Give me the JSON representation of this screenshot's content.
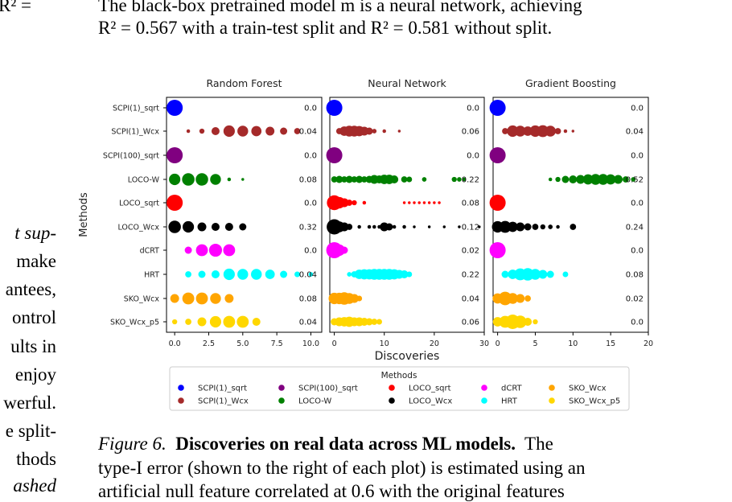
{
  "body_text": {
    "top_line1": "The black-box pretrained model m is a neural network, achieving",
    "top_line2": "R² = 0.567 with a train-test split and R² = 0.581 without split.",
    "left_fragment_eq": "R² =",
    "left_col_lines": [
      "t sup-",
      "make",
      "antees,",
      "ontrol",
      "ults in",
      "enjoy",
      "werful.",
      "e split-",
      "thods",
      "ashed"
    ]
  },
  "caption": {
    "label": "Figure 6.",
    "title": "Discoveries on real data across ML models.",
    "line1_rest": "The",
    "line2": "type-I error (shown to the right of each plot) is estimated using an",
    "line3": "artificial null feature correlated at 0.6 with the original features"
  },
  "chart_data": {
    "type": "scatter",
    "subtype": "dot-strip with marker size proportional to frequency",
    "ylabel": "Methods",
    "xlabel": "Discoveries",
    "methods": [
      "SCPI(1)_sqrt",
      "SCPI(1)_Wcx",
      "SCPI(100)_sqrt",
      "LOCO-W",
      "LOCO_sqrt",
      "LOCO_Wcx",
      "dCRT",
      "HRT",
      "SKO_Wcx",
      "SKO_Wcx_p5"
    ],
    "colors": {
      "SCPI(1)_sqrt": "#0000ff",
      "SCPI(1)_Wcx": "#a52a2a",
      "SCPI(100)_sqrt": "#800080",
      "LOCO-W": "#008000",
      "LOCO_sqrt": "#ff0000",
      "LOCO_Wcx": "#000000",
      "dCRT": "#ff00ff",
      "HRT": "#00ffff",
      "SKO_Wcx": "#ffa500",
      "SKO_Wcx_p5": "#ffd700"
    },
    "panels": [
      {
        "title": "Random Forest",
        "xlim": [
          -0.6,
          10.8
        ],
        "xticks": [
          0.0,
          2.5,
          5.0,
          7.5,
          10.0
        ],
        "xtick_labels": [
          "0.0",
          "2.5",
          "5.0",
          "7.5",
          "10.0"
        ],
        "type1_error": [
          "0.0",
          "0.04",
          "0.0",
          "0.08",
          "0.0",
          "0.32",
          "0.0",
          "0.04",
          "0.08",
          "0.04"
        ],
        "points": [
          [
            [
              0,
              1.0
            ]
          ],
          [
            [
              1,
              0.05
            ],
            [
              2,
              0.1
            ],
            [
              3,
              0.25
            ],
            [
              4,
              0.5
            ],
            [
              5,
              0.45
            ],
            [
              6,
              0.4
            ],
            [
              7,
              0.3
            ],
            [
              8,
              0.2
            ],
            [
              9,
              0.15
            ]
          ],
          [
            [
              0,
              1.0
            ]
          ],
          [
            [
              0,
              0.5
            ],
            [
              1,
              0.6
            ],
            [
              2,
              0.6
            ],
            [
              3,
              0.45
            ],
            [
              4,
              0.05
            ],
            [
              5,
              0.03
            ]
          ],
          [
            [
              0,
              1.0
            ]
          ],
          [
            [
              0,
              0.6
            ],
            [
              1,
              0.5
            ],
            [
              2,
              0.3
            ],
            [
              3,
              0.25
            ],
            [
              4,
              0.25
            ],
            [
              5,
              0.2
            ]
          ],
          [
            [
              1,
              0.2
            ],
            [
              2,
              0.55
            ],
            [
              3,
              0.65
            ],
            [
              4,
              0.55
            ]
          ],
          [
            [
              1,
              0.15
            ],
            [
              2,
              0.2
            ],
            [
              3,
              0.25
            ],
            [
              4,
              0.5
            ],
            [
              5,
              0.45
            ],
            [
              6,
              0.45
            ],
            [
              7,
              0.35
            ],
            [
              8,
              0.2
            ],
            [
              9,
              0.12
            ],
            [
              10,
              0.08
            ]
          ],
          [
            [
              0,
              0.3
            ],
            [
              1,
              0.55
            ],
            [
              2,
              0.55
            ],
            [
              3,
              0.45
            ],
            [
              4,
              0.3
            ]
          ],
          [
            [
              0,
              0.1
            ],
            [
              1,
              0.15
            ],
            [
              2,
              0.3
            ],
            [
              3,
              0.5
            ],
            [
              4,
              0.55
            ],
            [
              5,
              0.55
            ],
            [
              6,
              0.25
            ]
          ]
        ]
      },
      {
        "title": "Neural Network",
        "xlim": [
          -0.9,
          30.0
        ],
        "xticks": [
          0,
          10,
          20,
          30
        ],
        "xtick_labels": [
          "0",
          "10",
          "20",
          "30"
        ],
        "type1_error": [
          "0.0",
          "0.06",
          "0.0",
          "0.22",
          "0.08",
          "0.12",
          "0.02",
          "0.22",
          "0.04",
          "0.06"
        ],
        "points": [
          [
            [
              0,
              1.0
            ]
          ],
          [
            [
              1,
              0.15
            ],
            [
              2,
              0.35
            ],
            [
              3,
              0.45
            ],
            [
              4,
              0.45
            ],
            [
              5,
              0.4
            ],
            [
              6,
              0.3
            ],
            [
              7,
              0.2
            ],
            [
              8,
              0.08
            ],
            [
              10,
              0.05
            ],
            [
              13,
              0.03
            ]
          ],
          [
            [
              0,
              1.0
            ]
          ],
          [
            [
              0,
              0.15
            ],
            [
              1,
              0.2
            ],
            [
              2,
              0.15
            ],
            [
              3,
              0.2
            ],
            [
              4,
              0.15
            ],
            [
              5,
              0.2
            ],
            [
              6,
              0.15
            ],
            [
              7,
              0.2
            ],
            [
              8,
              0.3
            ],
            [
              9,
              0.25
            ],
            [
              10,
              0.35
            ],
            [
              11,
              0.35
            ],
            [
              12,
              0.25
            ],
            [
              14,
              0.15
            ],
            [
              15,
              0.12
            ],
            [
              18,
              0.08
            ],
            [
              24,
              0.1
            ],
            [
              25,
              0.08
            ],
            [
              26,
              0.05
            ]
          ],
          [
            [
              0,
              0.85
            ],
            [
              1,
              0.5
            ],
            [
              2,
              0.3
            ],
            [
              3,
              0.15
            ],
            [
              4,
              0.1
            ],
            [
              6,
              0.05
            ],
            [
              14,
              0.03
            ],
            [
              15,
              0.03
            ],
            [
              16,
              0.03
            ],
            [
              17,
              0.03
            ],
            [
              18,
              0.03
            ],
            [
              19,
              0.03
            ],
            [
              20,
              0.03
            ],
            [
              21,
              0.03
            ]
          ],
          [
            [
              0,
              0.9
            ],
            [
              1,
              0.45
            ],
            [
              2,
              0.3
            ],
            [
              3,
              0.15
            ],
            [
              5,
              0.05
            ],
            [
              7,
              0.05
            ],
            [
              8,
              0.05
            ],
            [
              9,
              0.05
            ],
            [
              10,
              0.3
            ],
            [
              11,
              0.2
            ],
            [
              12,
              0.05
            ],
            [
              14,
              0.05
            ],
            [
              16,
              0.03
            ],
            [
              19,
              0.03
            ],
            [
              22,
              0.03
            ],
            [
              25,
              0.03
            ],
            [
              29,
              0.03
            ]
          ],
          [
            [
              0,
              1.0
            ],
            [
              1,
              0.5
            ],
            [
              2,
              0.2
            ]
          ],
          [
            [
              3,
              0.08
            ],
            [
              4,
              0.15
            ],
            [
              5,
              0.35
            ],
            [
              6,
              0.4
            ],
            [
              7,
              0.4
            ],
            [
              8,
              0.45
            ],
            [
              9,
              0.45
            ],
            [
              10,
              0.45
            ],
            [
              11,
              0.45
            ],
            [
              12,
              0.4
            ],
            [
              13,
              0.3
            ],
            [
              14,
              0.25
            ],
            [
              15,
              0.12
            ]
          ],
          [
            [
              0,
              0.5
            ],
            [
              1,
              0.5
            ],
            [
              2,
              0.6
            ],
            [
              3,
              0.45
            ],
            [
              4,
              0.3
            ],
            [
              5,
              0.12
            ]
          ],
          [
            [
              0,
              0.2
            ],
            [
              1,
              0.3
            ],
            [
              2,
              0.35
            ],
            [
              3,
              0.4
            ],
            [
              4,
              0.3
            ],
            [
              5,
              0.3
            ],
            [
              6,
              0.25
            ],
            [
              7,
              0.2
            ],
            [
              8,
              0.15
            ],
            [
              9,
              0.12
            ]
          ]
        ]
      },
      {
        "title": "Gradient Boosting",
        "xlim": [
          -0.6,
          20.0
        ],
        "xticks": [
          0,
          5,
          10,
          15,
          20
        ],
        "xtick_labels": [
          "0",
          "5",
          "10",
          "15",
          "20"
        ],
        "type1_error": [
          "0.0",
          "0.04",
          "0.0",
          "0.52",
          "0.0",
          "0.24",
          "0.0",
          "0.08",
          "0.02",
          "0.0"
        ],
        "points": [
          [
            [
              0,
              1.0
            ]
          ],
          [
            [
              1,
              0.15
            ],
            [
              2,
              0.5
            ],
            [
              3,
              0.45
            ],
            [
              4,
              0.35
            ],
            [
              5,
              0.5
            ],
            [
              6,
              0.55
            ],
            [
              7,
              0.45
            ],
            [
              8,
              0.15
            ],
            [
              9,
              0.05
            ],
            [
              10,
              0.03
            ]
          ],
          [
            [
              0,
              1.0
            ]
          ],
          [
            [
              7,
              0.05
            ],
            [
              8,
              0.1
            ],
            [
              9,
              0.2
            ],
            [
              10,
              0.25
            ],
            [
              11,
              0.3
            ],
            [
              12,
              0.4
            ],
            [
              13,
              0.45
            ],
            [
              14,
              0.45
            ],
            [
              15,
              0.4
            ],
            [
              16,
              0.3
            ],
            [
              17,
              0.15
            ],
            [
              18,
              0.08
            ]
          ],
          [
            [
              0,
              1.0
            ]
          ],
          [
            [
              0,
              0.5
            ],
            [
              1,
              0.55
            ],
            [
              2,
              0.4
            ],
            [
              3,
              0.3
            ],
            [
              4,
              0.2
            ],
            [
              5,
              0.15
            ],
            [
              6,
              0.1
            ],
            [
              7,
              0.08
            ],
            [
              8,
              0.05
            ],
            [
              10,
              0.15
            ]
          ],
          [
            [
              0,
              1.0
            ]
          ],
          [
            [
              1,
              0.2
            ],
            [
              2,
              0.35
            ],
            [
              3,
              0.55
            ],
            [
              4,
              0.6
            ],
            [
              5,
              0.45
            ],
            [
              6,
              0.3
            ],
            [
              7,
              0.2
            ],
            [
              9,
              0.12
            ]
          ],
          [
            [
              0,
              0.4
            ],
            [
              1,
              0.7
            ],
            [
              2,
              0.45
            ],
            [
              3,
              0.3
            ],
            [
              4,
              0.15
            ]
          ],
          [
            [
              0,
              0.35
            ],
            [
              1,
              0.55
            ],
            [
              2,
              0.8
            ],
            [
              3,
              0.6
            ],
            [
              4,
              0.25
            ],
            [
              5,
              0.1
            ]
          ]
        ]
      }
    ],
    "legend": {
      "title": "Methods",
      "placement": "bottom-center",
      "entries": [
        "SCPI(1)_sqrt",
        "SCPI(1)_Wcx",
        "SCPI(100)_sqrt",
        "LOCO-W",
        "LOCO_sqrt",
        "LOCO_Wcx",
        "dCRT",
        "HRT",
        "SKO_Wcx",
        "SKO_Wcx_p5"
      ]
    }
  }
}
